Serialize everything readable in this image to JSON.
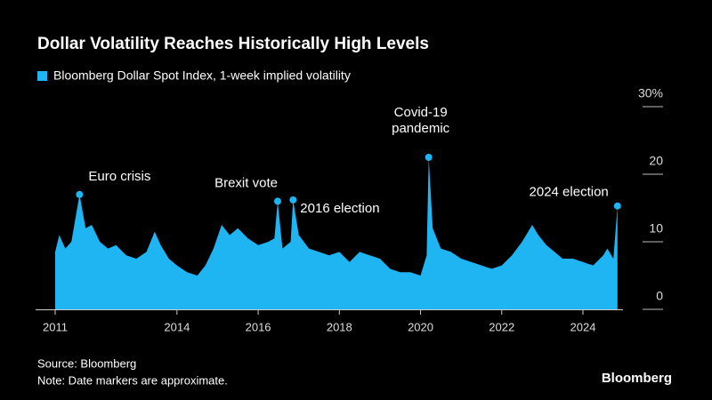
{
  "chart_data": {
    "type": "area",
    "title": "Dollar Volatility Reaches Historically High Levels",
    "series": [
      {
        "name": "Bloomberg Dollar Spot Index, 1-week implied volatility",
        "color": "#1fb4f2",
        "x": [
          2011.0,
          2011.1,
          2011.25,
          2011.4,
          2011.6,
          2011.75,
          2011.9,
          2012.1,
          2012.3,
          2012.5,
          2012.75,
          2013.0,
          2013.25,
          2013.45,
          2013.6,
          2013.8,
          2014.0,
          2014.25,
          2014.5,
          2014.7,
          2014.9,
          2015.1,
          2015.3,
          2015.5,
          2015.75,
          2016.0,
          2016.25,
          2016.4,
          2016.48,
          2016.6,
          2016.8,
          2016.86,
          2017.0,
          2017.25,
          2017.5,
          2017.75,
          2018.0,
          2018.25,
          2018.5,
          2018.75,
          2019.0,
          2019.25,
          2019.5,
          2019.75,
          2020.0,
          2020.15,
          2020.2,
          2020.3,
          2020.5,
          2020.75,
          2021.0,
          2021.25,
          2021.5,
          2021.75,
          2022.0,
          2022.25,
          2022.5,
          2022.75,
          2022.9,
          2023.1,
          2023.3,
          2023.5,
          2023.75,
          2024.0,
          2024.25,
          2024.5,
          2024.6,
          2024.75,
          2024.85
        ],
        "values": [
          8.5,
          11,
          9,
          10,
          17,
          12,
          12.5,
          10,
          9,
          9.5,
          8,
          7.5,
          8.5,
          11.5,
          9.5,
          7.5,
          6.5,
          5.5,
          5,
          6.5,
          9,
          12.5,
          11,
          12,
          10.5,
          9.5,
          10,
          10.5,
          16,
          9,
          10,
          16.2,
          11,
          9,
          8.5,
          8,
          8.5,
          7,
          8.5,
          8,
          7.5,
          6,
          5.5,
          5.5,
          5,
          8,
          22.5,
          12,
          9,
          8.5,
          7.5,
          7,
          6.5,
          6,
          6.5,
          8,
          10,
          12.5,
          11,
          9.5,
          8.5,
          7.5,
          7.5,
          7,
          6.5,
          8,
          9,
          7.5,
          15.3
        ]
      }
    ],
    "annotations": [
      {
        "text": [
          "Euro crisis"
        ],
        "x": 2011.6,
        "y": 17
      },
      {
        "text": [
          "Brexit vote"
        ],
        "x": 2016.48,
        "y": 16
      },
      {
        "text": [
          "2016 election"
        ],
        "x": 2016.86,
        "y": 16.2
      },
      {
        "text": [
          "Covid-19",
          "pandemic"
        ],
        "x": 2020.2,
        "y": 22.5
      },
      {
        "text": [
          "2024 election"
        ],
        "x": 2024.85,
        "y": 15.3
      }
    ],
    "xlim": [
      2010.95,
      2025.2
    ],
    "xticks": [
      2011,
      2014,
      2016,
      2018,
      2020,
      2022,
      2024
    ],
    "ylim": [
      0,
      30
    ],
    "yticks": [
      0,
      10,
      20,
      {
        "value": 30,
        "label": "30%"
      }
    ],
    "source": "Source: Bloomberg",
    "note": "Note: Date markers are approximate.",
    "brand": "Bloomberg"
  }
}
